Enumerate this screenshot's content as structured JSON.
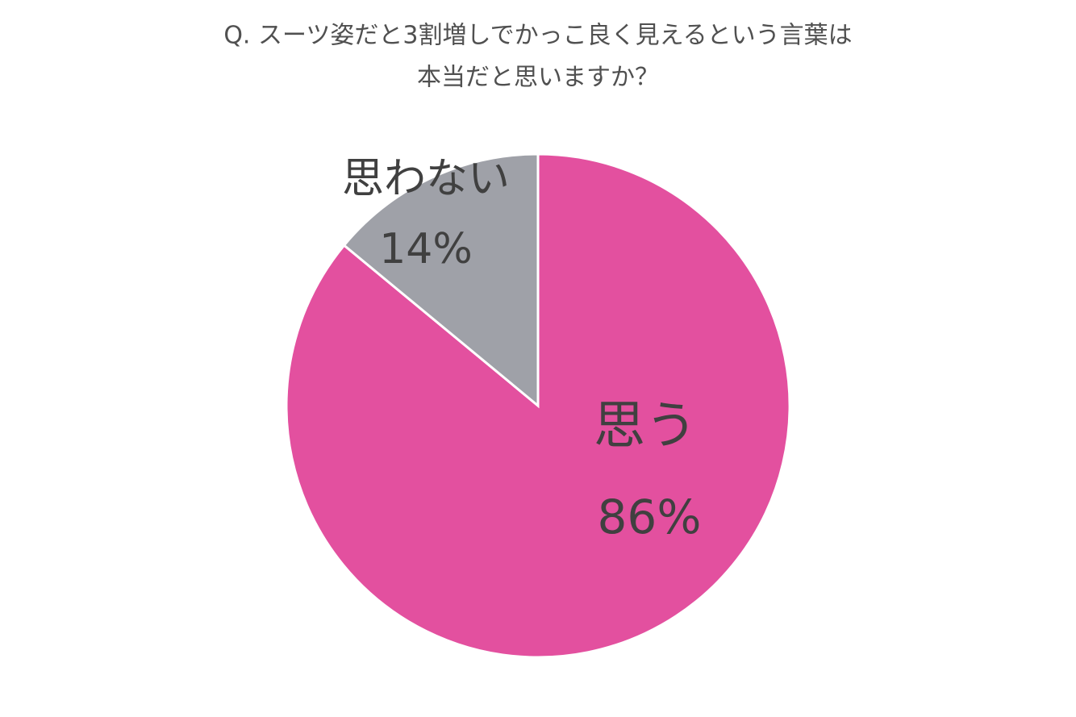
{
  "chart_data": {
    "type": "pie",
    "title": [
      "Q. スーツ姿だと3割増しでかっこ良く見えるという言葉は",
      "本当だと思いますか？"
    ],
    "categories": [
      "思う",
      "思わない"
    ],
    "values": [
      86,
      14
    ],
    "value_labels": [
      "86%",
      "14%"
    ],
    "colors": [
      "#e3509f",
      "#9fa1a8"
    ]
  }
}
